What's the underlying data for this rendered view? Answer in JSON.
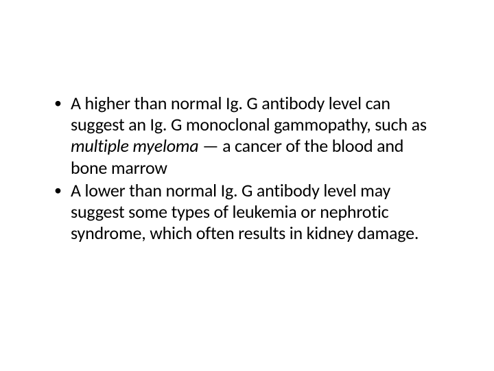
{
  "slide": {
    "background_color": "#ffffff",
    "text_color": "#000000",
    "font_family": "Calibri",
    "font_size_pt": 20,
    "bullets": [
      {
        "segments": [
          {
            "text": "A higher than normal Ig. G antibody level can suggest an Ig. G monoclonal gammopathy, such as ",
            "style": "normal"
          },
          {
            "text": "multiple myeloma",
            "style": "italic"
          },
          {
            "text": " — a cancer of the blood and bone marrow",
            "style": "normal"
          }
        ]
      },
      {
        "segments": [
          {
            "text": "A lower than normal Ig. G antibody level may suggest some types of leukemia or nephrotic syndrome, which often results in kidney damage.",
            "style": "normal"
          }
        ]
      }
    ]
  }
}
